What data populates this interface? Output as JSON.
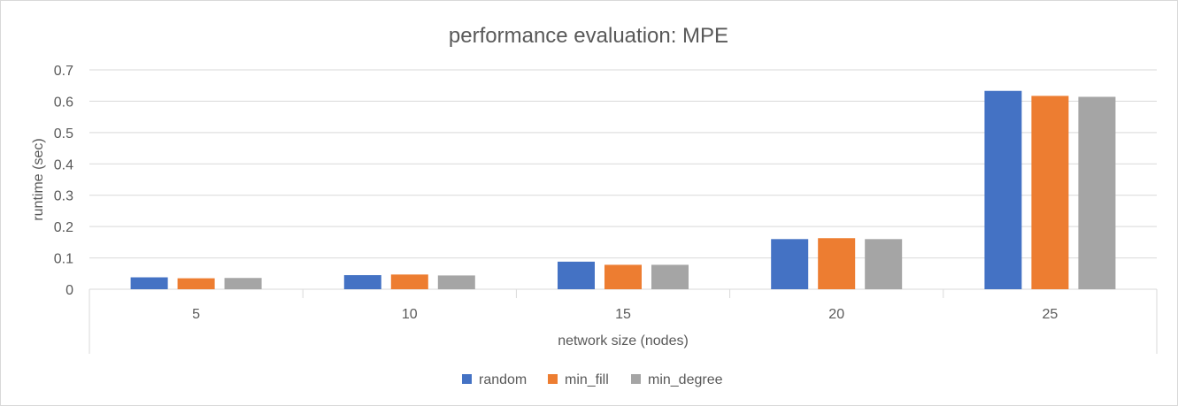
{
  "chart_data": {
    "type": "bar",
    "title": "performance evaluation: MPE",
    "xlabel": "network size (nodes)",
    "ylabel": "runtime (sec)",
    "categories": [
      "5",
      "10",
      "15",
      "20",
      "25"
    ],
    "series": [
      {
        "name": "random",
        "color": "#4472c4",
        "values": [
          0.038,
          0.045,
          0.088,
          0.16,
          0.633
        ]
      },
      {
        "name": "min_fill",
        "color": "#ed7d31",
        "values": [
          0.035,
          0.047,
          0.078,
          0.163,
          0.617
        ]
      },
      {
        "name": "min_degree",
        "color": "#a5a5a5",
        "values": [
          0.036,
          0.044,
          0.078,
          0.16,
          0.614
        ]
      }
    ],
    "ylim": [
      0,
      0.7
    ],
    "yticks": [
      "0",
      "0.1",
      "0.2",
      "0.3",
      "0.4",
      "0.5",
      "0.6",
      "0.7"
    ],
    "grid": true,
    "legend": "bottom"
  }
}
